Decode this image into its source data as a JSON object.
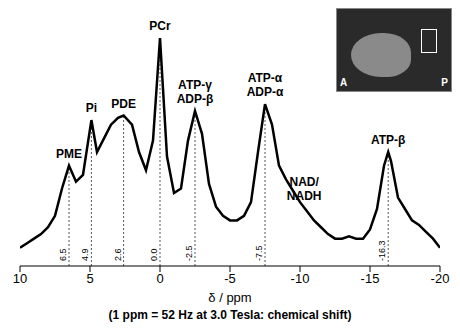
{
  "chart_data": {
    "type": "line",
    "x_label": "δ / ppm",
    "x_label_note": "(1 ppm = 52 Hz at 3.0 Tesla: chemical shift)",
    "x": [
      10,
      9.5,
      9,
      8.5,
      8,
      7.5,
      7,
      6.5,
      6,
      5.5,
      4.9,
      4.5,
      4,
      3.5,
      3,
      2.6,
      2,
      1.5,
      1,
      0.5,
      0,
      -0.5,
      -1,
      -1.5,
      -2,
      -2.5,
      -3,
      -3.5,
      -4,
      -4.5,
      -5,
      -5.5,
      -6,
      -6.5,
      -7,
      -7.5,
      -8,
      -8.5,
      -9,
      -9.5,
      -10,
      -10.5,
      -11,
      -11.5,
      -12,
      -12.5,
      -13,
      -13.5,
      -14,
      -14.5,
      -15,
      -15.5,
      -16,
      -16.3,
      -16.5,
      -17,
      -17.5,
      -18,
      -18.5,
      -19,
      -19.5,
      -20
    ],
    "values": [
      8,
      10,
      12,
      14,
      17,
      22,
      34,
      44,
      37,
      40,
      64,
      50,
      56,
      62,
      65,
      66,
      62,
      50,
      42,
      55,
      100,
      48,
      32,
      34,
      55,
      68,
      58,
      36,
      26,
      22,
      20,
      20,
      22,
      28,
      50,
      71,
      62,
      44,
      38,
      33,
      28,
      24,
      20,
      17,
      14,
      12,
      12,
      13,
      12,
      12,
      16,
      25,
      44,
      50,
      46,
      30,
      25,
      20,
      18,
      15,
      12,
      8
    ],
    "color": "#000000",
    "xlim": [
      10,
      -20
    ],
    "xticks": [
      10,
      5,
      0,
      -5,
      -10,
      -15,
      -20
    ],
    "ylim": [
      0,
      100
    ],
    "tick_labels": "x",
    "grid": false,
    "annotations": [
      {
        "x": 6.5,
        "text": [
          "PME"
        ]
      },
      {
        "x": 4.9,
        "text": [
          "Pi"
        ]
      },
      {
        "x": 2.6,
        "text": [
          "PDE"
        ]
      },
      {
        "x": 0,
        "text": [
          "PCr"
        ]
      },
      {
        "x": -2.5,
        "text": [
          "ATP-γ",
          "ADP-β"
        ]
      },
      {
        "x": -7.5,
        "text": [
          "ATP-α",
          "ADP-α"
        ]
      },
      {
        "x": -10.3,
        "text": [
          "NAD/",
          "NADH"
        ]
      },
      {
        "x": -16.3,
        "text": [
          "ATP-β"
        ]
      }
    ],
    "reference_lines": [
      {
        "value": 6.5,
        "label": "6.5"
      },
      {
        "value": 4.9,
        "label": "4.9"
      },
      {
        "value": 2.6,
        "label": "2.6"
      },
      {
        "value": 0,
        "label": "0.0"
      },
      {
        "value": -2.5,
        "label": "-2.5"
      },
      {
        "value": -7.5,
        "label": "-7.5"
      },
      {
        "value": -16.3,
        "label": "-16.3"
      }
    ],
    "inset_labels": [
      "A",
      "P"
    ]
  }
}
